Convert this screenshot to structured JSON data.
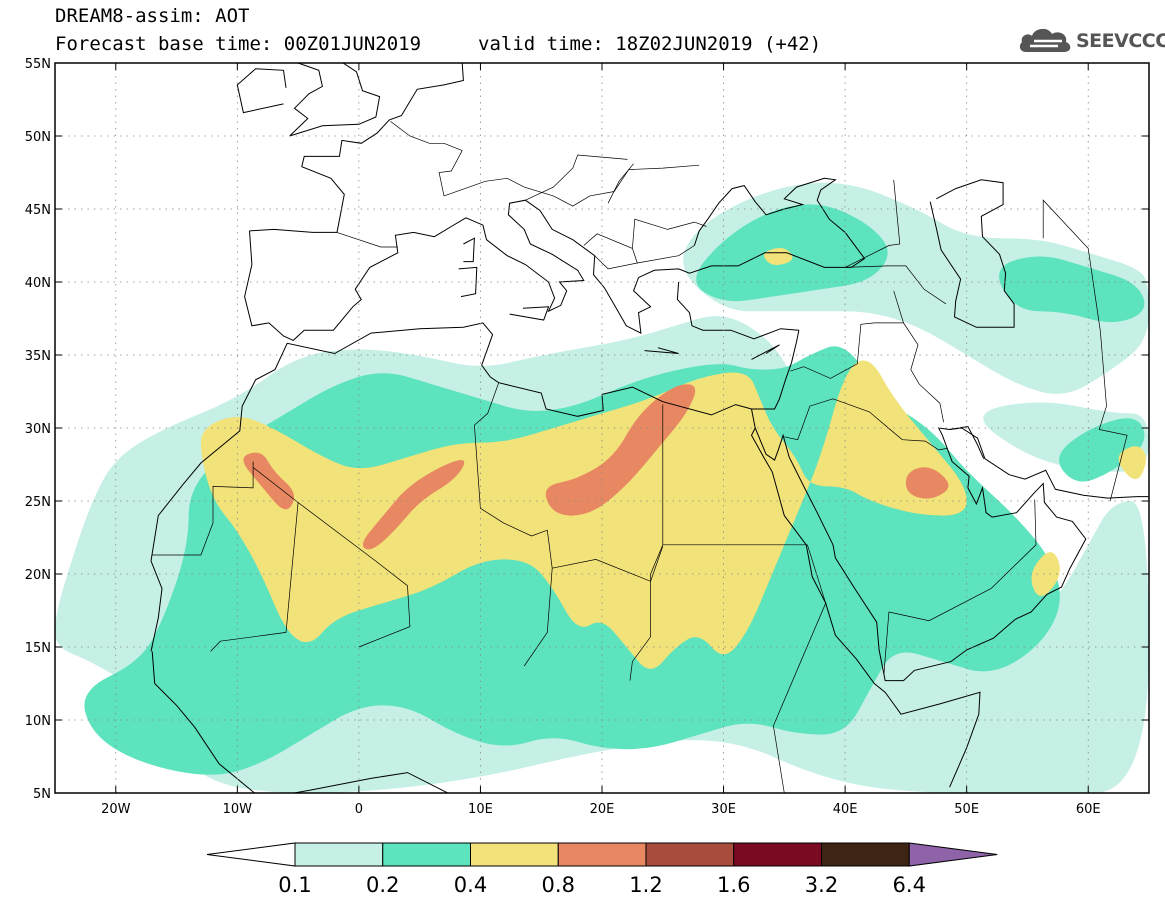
{
  "header": {
    "title": "DREAM8-assim: AOT",
    "base_time": "Forecast base time: 00Z01JUN2019",
    "valid_time": "valid time: 18Z02JUN2019 (+42)"
  },
  "logo": {
    "text": "SEEVCCC",
    "icon": "cloud-icon",
    "color": "#555555"
  },
  "map": {
    "lon_range": [
      -25,
      65
    ],
    "lat_range": [
      5,
      55
    ],
    "lon_ticks": [
      {
        "value": -20,
        "label": "20W"
      },
      {
        "value": -10,
        "label": "10W"
      },
      {
        "value": 0,
        "label": "0"
      },
      {
        "value": 10,
        "label": "10E"
      },
      {
        "value": 20,
        "label": "20E"
      },
      {
        "value": 30,
        "label": "30E"
      },
      {
        "value": 40,
        "label": "40E"
      },
      {
        "value": 50,
        "label": "50E"
      },
      {
        "value": 60,
        "label": "60E"
      }
    ],
    "lat_ticks": [
      {
        "value": 55,
        "label": "55N"
      },
      {
        "value": 50,
        "label": "50N"
      },
      {
        "value": 45,
        "label": "45N"
      },
      {
        "value": 40,
        "label": "40N"
      },
      {
        "value": 35,
        "label": "35N"
      },
      {
        "value": 30,
        "label": "30N"
      },
      {
        "value": 25,
        "label": "25N"
      },
      {
        "value": 20,
        "label": "20N"
      },
      {
        "value": 15,
        "label": "15N"
      },
      {
        "value": 10,
        "label": "10N"
      },
      {
        "value": 5,
        "label": "5N"
      }
    ],
    "grid": "dotted",
    "fields": [
      {
        "level": 0.1,
        "color": "#c6f0e6",
        "polys": [
          [
            [
              -25,
              15
            ],
            [
              -22,
              14
            ],
            [
              -18,
              12
            ],
            [
              -16,
              9
            ],
            [
              -13,
              6
            ],
            [
              -8,
              5
            ],
            [
              0,
              5
            ],
            [
              10,
              6
            ],
            [
              20,
              8
            ],
            [
              30,
              9
            ],
            [
              38,
              6
            ],
            [
              45,
              5
            ],
            [
              56,
              5
            ],
            [
              65,
              5
            ],
            [
              65,
              25
            ],
            [
              62,
              25
            ],
            [
              60,
              22
            ],
            [
              58,
              19
            ],
            [
              55,
              16
            ],
            [
              50,
              14
            ],
            [
              47,
              16
            ],
            [
              44,
              17
            ],
            [
              40,
              16
            ],
            [
              38,
              22
            ],
            [
              36,
              33
            ],
            [
              34,
              36
            ],
            [
              30,
              38
            ],
            [
              26,
              37
            ],
            [
              22,
              36
            ],
            [
              15,
              35
            ],
            [
              10,
              34
            ],
            [
              5,
              35
            ],
            [
              0,
              35.5
            ],
            [
              -5,
              35
            ],
            [
              -10,
              32
            ],
            [
              -16,
              30
            ],
            [
              -20,
              28
            ],
            [
              -22,
              25
            ],
            [
              -24,
              20
            ],
            [
              -25,
              17
            ]
          ],
          [
            [
              26,
              41
            ],
            [
              28,
              44
            ],
            [
              34,
              46.5
            ],
            [
              40,
              47
            ],
            [
              46,
              45
            ],
            [
              50,
              43
            ],
            [
              56,
              43
            ],
            [
              60,
              42
            ],
            [
              64,
              41
            ],
            [
              65,
              40
            ],
            [
              65,
              36
            ],
            [
              62,
              34
            ],
            [
              58,
              32
            ],
            [
              54,
              33
            ],
            [
              50,
              35
            ],
            [
              46,
              37
            ],
            [
              42,
              38
            ],
            [
              38,
              38
            ],
            [
              34,
              38
            ],
            [
              30,
              38
            ]
          ],
          [
            [
              50,
              31
            ],
            [
              56,
              32
            ],
            [
              62,
              31
            ],
            [
              65,
              31
            ],
            [
              65,
              27
            ],
            [
              60,
              27
            ],
            [
              55,
              28
            ]
          ]
        ]
      },
      {
        "level": 0.2,
        "color": "#5de3bd",
        "polys": [
          [
            [
              -23,
              12
            ],
            [
              -18,
              14
            ],
            [
              -16,
              17
            ],
            [
              -14,
              22
            ],
            [
              -14,
              26
            ],
            [
              -10,
              29
            ],
            [
              -6,
              31
            ],
            [
              -2,
              33
            ],
            [
              2,
              34
            ],
            [
              6,
              33
            ],
            [
              10,
              32
            ],
            [
              14,
              31
            ],
            [
              18,
              31.5
            ],
            [
              22,
              33
            ],
            [
              26,
              34
            ],
            [
              30,
              34.5
            ],
            [
              32,
              34
            ],
            [
              35,
              34
            ],
            [
              37,
              35
            ],
            [
              40,
              36
            ],
            [
              43,
              32
            ],
            [
              47,
              30
            ],
            [
              50,
              27
            ],
            [
              54,
              24
            ],
            [
              57,
              21
            ],
            [
              58,
              18
            ],
            [
              56,
              15
            ],
            [
              52,
              13
            ],
            [
              48,
              14
            ],
            [
              44,
              15
            ],
            [
              42,
              12
            ],
            [
              40,
              9
            ],
            [
              36,
              9
            ],
            [
              32,
              10
            ],
            [
              28,
              9
            ],
            [
              24,
              8
            ],
            [
              20,
              8
            ],
            [
              16,
              9
            ],
            [
              12,
              8
            ],
            [
              8,
              9
            ],
            [
              4,
              11
            ],
            [
              0,
              11
            ],
            [
              -4,
              9
            ],
            [
              -8,
              7
            ],
            [
              -12,
              6
            ],
            [
              -18,
              7
            ],
            [
              -22,
              9
            ]
          ],
          [
            [
              27,
              40
            ],
            [
              30,
              43
            ],
            [
              34,
              45
            ],
            [
              38,
              45.5
            ],
            [
              42,
              44
            ],
            [
              44,
              42
            ],
            [
              42,
              40
            ],
            [
              38,
              39.5
            ],
            [
              34,
              39
            ],
            [
              30,
              38.5
            ]
          ],
          [
            [
              52,
              41
            ],
            [
              56,
              42
            ],
            [
              60,
              41
            ],
            [
              64,
              40
            ],
            [
              65,
              38
            ],
            [
              62,
              37
            ],
            [
              58,
              38
            ],
            [
              54,
              38
            ]
          ],
          [
            [
              57,
              28
            ],
            [
              60,
              30
            ],
            [
              64,
              31
            ],
            [
              65,
              29
            ],
            [
              62,
              27
            ],
            [
              59,
              26
            ]
          ]
        ]
      },
      {
        "level": 0.4,
        "color": "#f2e27a",
        "polys": [
          [
            [
              -13,
              30
            ],
            [
              -10,
              31
            ],
            [
              -7,
              30
            ],
            [
              -3,
              28
            ],
            [
              0,
              27
            ],
            [
              4,
              28
            ],
            [
              8,
              29
            ],
            [
              12,
              29
            ],
            [
              16,
              30
            ],
            [
              20,
              31
            ],
            [
              24,
              32
            ],
            [
              28,
              33.5
            ],
            [
              32,
              34
            ],
            [
              33,
              32
            ],
            [
              34,
              30
            ],
            [
              36,
              28
            ],
            [
              37,
              26
            ],
            [
              40,
              26
            ],
            [
              42,
              25
            ],
            [
              46,
              24
            ],
            [
              50,
              24
            ],
            [
              50,
              26
            ],
            [
              47,
              29
            ],
            [
              44,
              32
            ],
            [
              42,
              35
            ],
            [
              40,
              34
            ],
            [
              38,
              28
            ],
            [
              36,
              24
            ],
            [
              34,
              20
            ],
            [
              32,
              16
            ],
            [
              30,
              14
            ],
            [
              28,
              16
            ],
            [
              26,
              15
            ],
            [
              24,
              13
            ],
            [
              22,
              15
            ],
            [
              20,
              17
            ],
            [
              18,
              16
            ],
            [
              16,
              19
            ],
            [
              14,
              21
            ],
            [
              10,
              21
            ],
            [
              6,
              19
            ],
            [
              2,
              18
            ],
            [
              -2,
              17
            ],
            [
              -4,
              15
            ],
            [
              -6,
              16
            ],
            [
              -8,
              20
            ],
            [
              -10,
              23
            ],
            [
              -12,
              25
            ],
            [
              -13,
              28
            ]
          ],
          [
            [
              29,
              20
            ],
            [
              31,
              21
            ],
            [
              33,
              19
            ],
            [
              32,
              16
            ],
            [
              30,
              16
            ]
          ],
          [
            [
              33,
              42
            ],
            [
              35,
              42.5
            ],
            [
              36,
              41.5
            ],
            [
              34,
              41
            ]
          ],
          [
            [
              55,
              20
            ],
            [
              57,
              22
            ],
            [
              58,
              20
            ],
            [
              56,
              18
            ]
          ],
          [
            [
              62,
              28
            ],
            [
              64,
              29
            ],
            [
              65,
              28
            ],
            [
              64,
              26
            ]
          ]
        ]
      },
      {
        "level": 0.8,
        "color": "#e88862",
        "polys": [
          [
            [
              -10,
              28
            ],
            [
              -8,
              26
            ],
            [
              -6,
              24
            ],
            [
              -5,
              25.5
            ],
            [
              -7,
              27
            ],
            [
              -8,
              28.5
            ]
          ],
          [
            [
              0,
              22
            ],
            [
              2,
              24
            ],
            [
              4,
              26
            ],
            [
              7,
              27.5
            ],
            [
              9,
              28
            ],
            [
              8,
              26.5
            ],
            [
              5,
              25
            ],
            [
              3,
              23
            ],
            [
              1,
              21.5
            ]
          ],
          [
            [
              15,
              26
            ],
            [
              18,
              26.5
            ],
            [
              21,
              28
            ],
            [
              23,
              31
            ],
            [
              26,
              33
            ],
            [
              28,
              33
            ],
            [
              27,
              31
            ],
            [
              25,
              29
            ],
            [
              22,
              26
            ],
            [
              19,
              24
            ],
            [
              16,
              24
            ]
          ],
          [
            [
              45,
              27
            ],
            [
              47,
              27.5
            ],
            [
              49,
              26
            ],
            [
              47,
              25
            ],
            [
              45,
              25.5
            ]
          ]
        ]
      }
    ]
  },
  "colorbar": {
    "colors": [
      "#c6f0e6",
      "#5de3bd",
      "#f2e27a",
      "#e88862",
      "#a84d3e",
      "#7a0a22",
      "#3e2412",
      "#8e63a8"
    ],
    "under_color": "#ffffff",
    "labels": [
      "0.1",
      "0.2",
      "0.4",
      "0.8",
      "1.2",
      "1.6",
      "3.2",
      "6.4"
    ]
  }
}
